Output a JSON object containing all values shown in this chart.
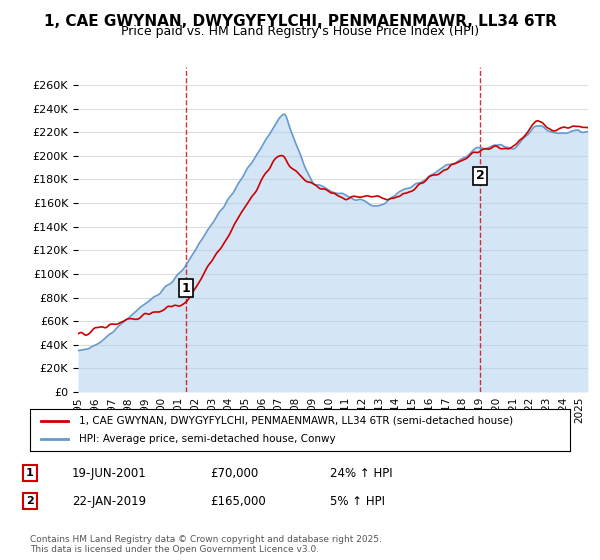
{
  "title": "1, CAE GWYNAN, DWYGYFYLCHI, PENMAENMAWR, LL34 6TR",
  "subtitle": "Price paid vs. HM Land Registry's House Price Index (HPI)",
  "x_start": 1995.0,
  "x_end": 2025.5,
  "y_min": 0,
  "y_max": 280000,
  "y_ticks": [
    0,
    20000,
    40000,
    60000,
    80000,
    100000,
    120000,
    140000,
    160000,
    180000,
    200000,
    220000,
    240000,
    260000
  ],
  "x_ticks": [
    1995,
    1996,
    1997,
    1998,
    1999,
    2000,
    2001,
    2002,
    2003,
    2004,
    2005,
    2006,
    2007,
    2008,
    2009,
    2010,
    2011,
    2012,
    2013,
    2014,
    2015,
    2016,
    2017,
    2018,
    2019,
    2020,
    2021,
    2022,
    2023,
    2024,
    2025
  ],
  "property_color": "#cc0000",
  "hpi_color": "#6699cc",
  "hpi_fill_color": "#aaccee",
  "marker1_x": 2001.47,
  "marker1_y": 70000,
  "marker2_x": 2019.06,
  "marker2_y": 165000,
  "marker1_label": "1",
  "marker2_label": "2",
  "legend_property": "1, CAE GWYNAN, DWYGYFYLCHI, PENMAENMAWR, LL34 6TR (semi-detached house)",
  "legend_hpi": "HPI: Average price, semi-detached house, Conwy",
  "annotation1_date": "19-JUN-2001",
  "annotation1_price": "£70,000",
  "annotation1_hpi": "24% ↑ HPI",
  "annotation2_date": "22-JAN-2019",
  "annotation2_price": "£165,000",
  "annotation2_hpi": "5% ↑ HPI",
  "footer": "Contains HM Land Registry data © Crown copyright and database right 2025.\nThis data is licensed under the Open Government Licence v3.0.",
  "bg_color": "#ffffff",
  "plot_bg_color": "#ffffff",
  "grid_color": "#dddddd"
}
